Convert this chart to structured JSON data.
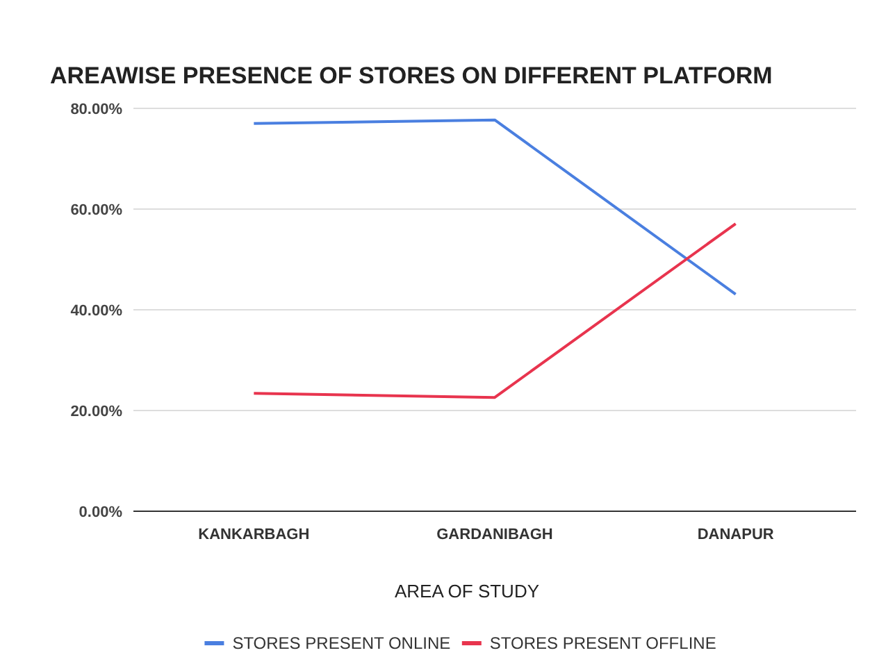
{
  "chart_data": {
    "type": "line",
    "title": "AREAWISE PRESENCE OF STORES ON DIFFERENT PLATFORM",
    "xlabel": "AREA OF STUDY",
    "categories": [
      "KANKARBAGH",
      "GARDANIBAGH",
      "DANAPUR"
    ],
    "series": [
      {
        "name": "STORES PRESENT ONLINE",
        "color": "#4a7fe0",
        "values": [
          77,
          77.7,
          43.1
        ]
      },
      {
        "name": "STORES PRESENT OFFLINE",
        "color": "#e8344e",
        "values": [
          23.4,
          22.6,
          57.1
        ]
      }
    ],
    "ylim": [
      0,
      80
    ],
    "yticks": [
      {
        "value": 0,
        "label": "0.00%"
      },
      {
        "value": 20,
        "label": "20.00%"
      },
      {
        "value": 40,
        "label": "40.00%"
      },
      {
        "value": 60,
        "label": "60.00%"
      },
      {
        "value": 80,
        "label": "80.00%"
      }
    ],
    "grid": "y",
    "legend": "bottom",
    "marker": "none",
    "line_style": "solid"
  }
}
